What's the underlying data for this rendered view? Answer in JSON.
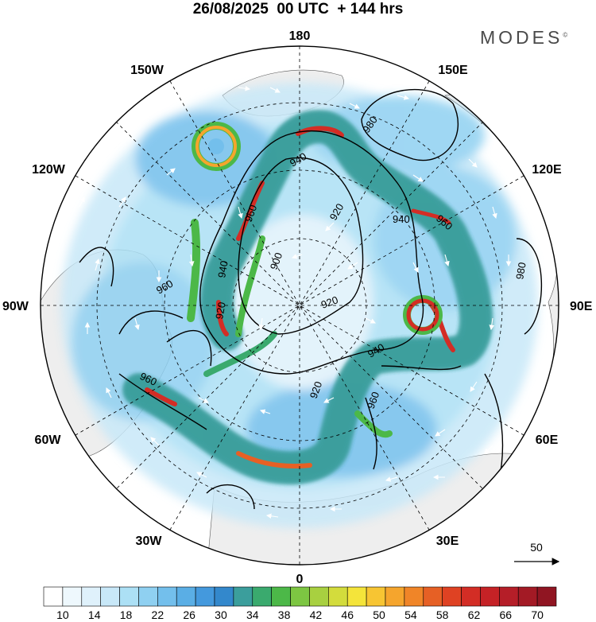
{
  "header": {
    "date": "26/08/2025",
    "time": "00 UTC",
    "lead": "+ 144 hrs"
  },
  "brand": {
    "name": "MODES",
    "mark": "©"
  },
  "longitudes": {
    "top": "180",
    "bottom": "0",
    "left": "90W",
    "right": "90E",
    "nw1": "150W",
    "nw2": "120W",
    "ne1": "150E",
    "ne2": "120E",
    "sw1": "60W",
    "sw2": "30W",
    "se1": "60E",
    "se2": "30E"
  },
  "contour_labels": [
    "980",
    "940",
    "960",
    "920",
    "900",
    "940",
    "960",
    "980",
    "960",
    "920",
    "920",
    "940",
    "960",
    "960",
    "920",
    "940"
  ],
  "vector_reference": {
    "label": "50"
  },
  "colorbar": {
    "ticks": [
      "10",
      "14",
      "18",
      "22",
      "26",
      "30",
      "34",
      "38",
      "42",
      "46",
      "50",
      "54",
      "58",
      "62",
      "66",
      "70"
    ],
    "colors": [
      "#ffffff",
      "#eef8fd",
      "#dff1fb",
      "#c8e8f8",
      "#ace0f5",
      "#8fd0f1",
      "#73bfec",
      "#5aaee5",
      "#4499dd",
      "#3388cc",
      "#3b9e9c",
      "#3aaa6e",
      "#4cb848",
      "#7dc642",
      "#a8d040",
      "#d3dc3c",
      "#f4e43a",
      "#f7c533",
      "#f5a52d",
      "#f08528",
      "#e66025",
      "#df4223",
      "#d32d25",
      "#c52226",
      "#b51e28",
      "#a31a25",
      "#901522"
    ]
  },
  "colors": {
    "jet_core": "#d6302a",
    "jet_mid": "#f5a52d",
    "jet_green": "#4cb848",
    "ocean_blue": "#5aaee5",
    "land_gray": "#eeeeee"
  }
}
